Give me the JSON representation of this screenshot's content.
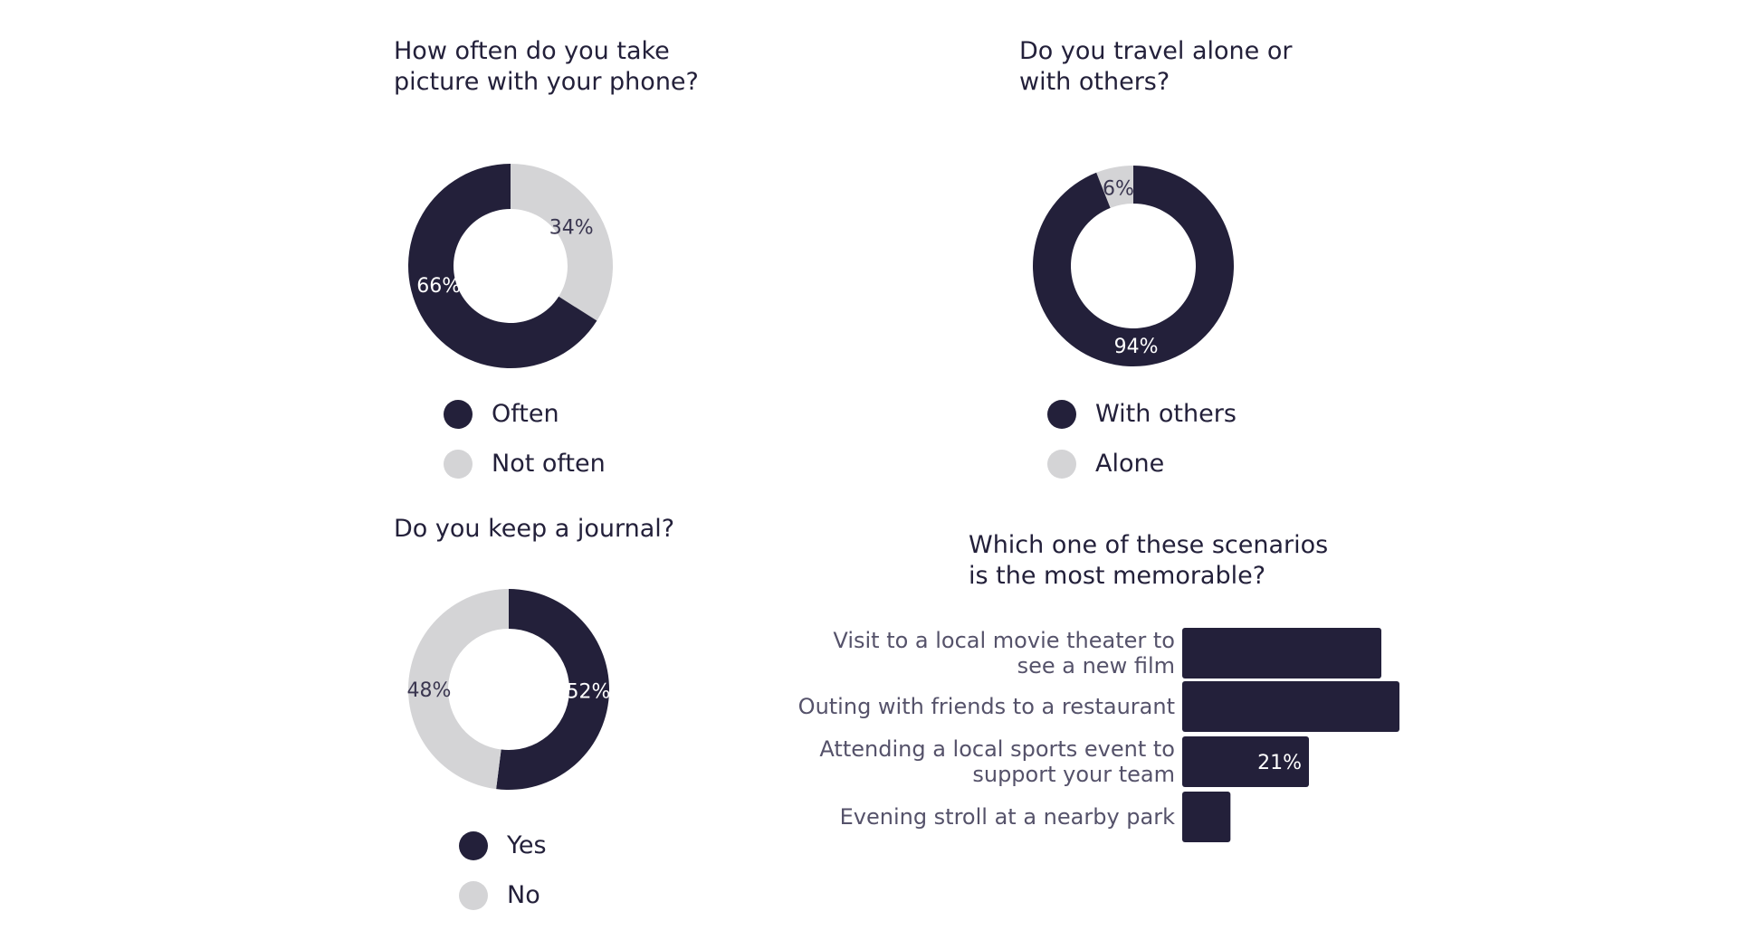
{
  "colors": {
    "dark": "#23203a",
    "light": "#d4d4d6"
  },
  "chart_data": [
    {
      "type": "pie",
      "title": "How often do you take\npicture with your phone?",
      "categories": [
        "Often",
        "Not often"
      ],
      "values": [
        66,
        34
      ],
      "value_labels": [
        "66%",
        "34%"
      ],
      "legend": "bottom"
    },
    {
      "type": "pie",
      "title": "Do you travel alone or\nwith others?",
      "categories": [
        "With others",
        "Alone"
      ],
      "values": [
        94,
        6
      ],
      "value_labels": [
        "94%",
        "6%"
      ],
      "legend": "bottom"
    },
    {
      "type": "pie",
      "title": "Do you keep a journal?",
      "categories": [
        "Yes",
        "No"
      ],
      "values": [
        52,
        48
      ],
      "value_labels": [
        "52%",
        "48%"
      ],
      "legend": "bottom"
    },
    {
      "type": "bar",
      "orientation": "horizontal",
      "title": "Which one of these scenarios\nis the most memorable?",
      "categories": [
        "Visit to a local movie theater to\nsee a new film",
        "Outing with friends to a restaurant",
        "Attending a local sports event to\nsupport your team",
        "Evening stroll at a nearby park"
      ],
      "values": [
        33,
        36,
        21,
        8
      ],
      "value_labels": [
        "",
        "",
        "21%",
        ""
      ],
      "xlim": [
        0,
        36
      ]
    }
  ]
}
